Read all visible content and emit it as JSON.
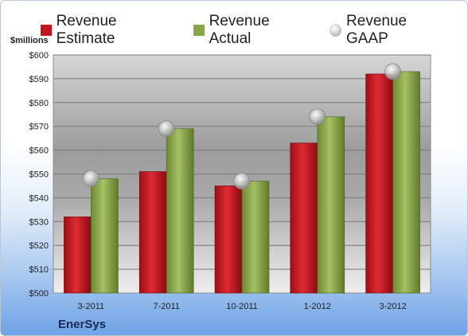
{
  "colors": {
    "estimate": "#c0141e",
    "actual": "#8aa64a",
    "gaap": "#b8b8b8"
  },
  "unit_label": "$millions",
  "company": "EnerSys",
  "chart_data": {
    "type": "bar",
    "categories": [
      "3-2011",
      "7-2011",
      "10-2011",
      "1-2012",
      "3-2012"
    ],
    "series": [
      {
        "name": "Revenue Estimate",
        "type": "bar",
        "values": [
          532,
          551,
          545,
          563,
          592
        ]
      },
      {
        "name": "Revenue Actual",
        "type": "bar",
        "values": [
          548,
          569,
          547,
          574,
          593
        ]
      },
      {
        "name": "Revenue GAAP",
        "type": "scatter",
        "values": [
          548,
          569,
          547,
          574,
          593
        ]
      }
    ],
    "ylabel": "$millions",
    "ylim": [
      500,
      600
    ],
    "yticks": [
      "$500",
      "$510",
      "$520",
      "$530",
      "$540",
      "$550",
      "$560",
      "$570",
      "$580",
      "$590",
      "$600"
    ],
    "grid": true,
    "legend_position": "top"
  }
}
